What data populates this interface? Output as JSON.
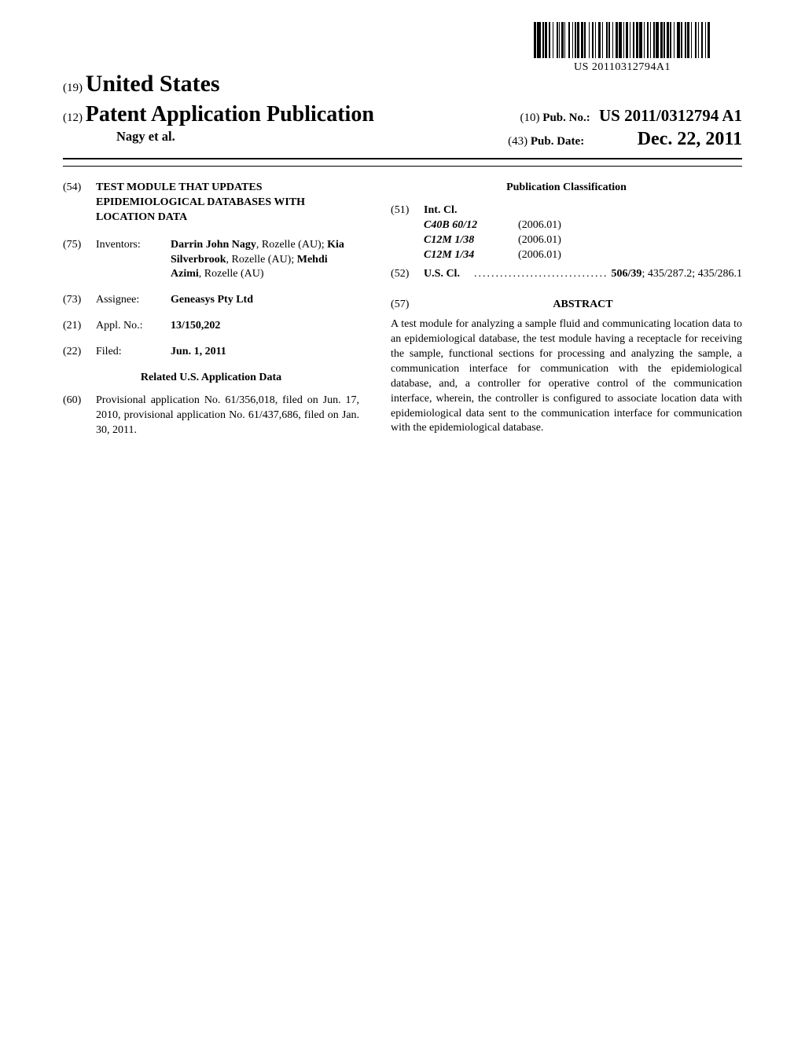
{
  "barcode_label": "US 20110312794A1",
  "header": {
    "line1_prefix": "(19)",
    "country": "United States",
    "line2_prefix": "(12)",
    "doc_type": "Patent Application Publication",
    "authors_line": "Nagy et al.",
    "pub_no_prefix": "(10)",
    "pub_no_label": "Pub. No.:",
    "pub_no": "US 2011/0312794 A1",
    "pub_date_prefix": "(43)",
    "pub_date_label": "Pub. Date:",
    "pub_date": "Dec. 22, 2011"
  },
  "left": {
    "title_num": "(54)",
    "title": "TEST MODULE THAT UPDATES EPIDEMIOLOGICAL DATABASES WITH LOCATION DATA",
    "inventors_num": "(75)",
    "inventors_label": "Inventors:",
    "inventors": "Darrin John Nagy, Rozelle (AU); Kia Silverbrook, Rozelle (AU); Mehdi Azimi, Rozelle (AU)",
    "inventors_bold": [
      "Darrin John Nagy",
      "Kia Silverbrook",
      "Mehdi Azimi"
    ],
    "assignee_num": "(73)",
    "assignee_label": "Assignee:",
    "assignee": "Geneasys Pty Ltd",
    "appl_num": "(21)",
    "appl_label": "Appl. No.:",
    "appl_val": "13/150,202",
    "filed_num": "(22)",
    "filed_label": "Filed:",
    "filed_val": "Jun. 1, 2011",
    "related_hdr": "Related U.S. Application Data",
    "prov_num": "(60)",
    "prov_text": "Provisional application No. 61/356,018, filed on Jun. 17, 2010, provisional application No. 61/437,686, filed on Jan. 30, 2011."
  },
  "right": {
    "pubclass_hdr": "Publication Classification",
    "intcl_num": "(51)",
    "intcl_label": "Int. Cl.",
    "intcl": [
      {
        "code": "C40B  60/12",
        "year": "(2006.01)"
      },
      {
        "code": "C12M  1/38",
        "year": "(2006.01)"
      },
      {
        "code": "C12M  1/34",
        "year": "(2006.01)"
      }
    ],
    "uscl_num": "(52)",
    "uscl_label": "U.S. Cl.",
    "uscl_bold": "506/39",
    "uscl_rest": "; 435/287.2; 435/286.1",
    "abstract_num": "(57)",
    "abstract_hdr": "ABSTRACT",
    "abstract": "A test module for analyzing a sample fluid and communicating location data to an epidemiological database, the test module having a receptacle for receiving the sample, functional sections for processing and analyzing the sample, a communication interface for communication with the epidemiological database, and, a controller for operative control of the communication interface, wherein, the controller is configured to associate location data with epidemiological data sent to the communication interface for communication with the epidemiological database."
  },
  "barcode_widths": [
    3,
    1,
    5,
    2,
    2,
    1,
    3,
    2,
    2,
    3,
    1,
    4,
    2,
    1,
    1,
    2,
    3,
    1,
    1,
    4,
    2,
    3,
    1,
    2,
    2,
    1,
    3,
    2,
    3,
    1,
    2,
    4,
    1,
    3,
    2,
    2,
    1,
    3,
    3,
    2,
    1,
    4,
    2,
    1,
    2,
    3,
    1,
    3,
    3,
    1,
    4,
    2,
    1,
    2,
    3,
    2,
    1,
    3,
    2,
    2,
    3,
    1,
    4,
    2,
    1,
    3,
    2,
    2,
    1,
    3,
    2,
    1,
    4,
    2,
    3,
    1,
    2,
    2,
    3,
    1,
    2,
    3,
    1,
    3,
    4,
    1,
    2,
    3,
    2,
    1,
    3,
    2,
    1,
    4,
    2,
    2,
    1,
    3,
    2,
    3,
    1,
    2,
    3,
    1
  ]
}
